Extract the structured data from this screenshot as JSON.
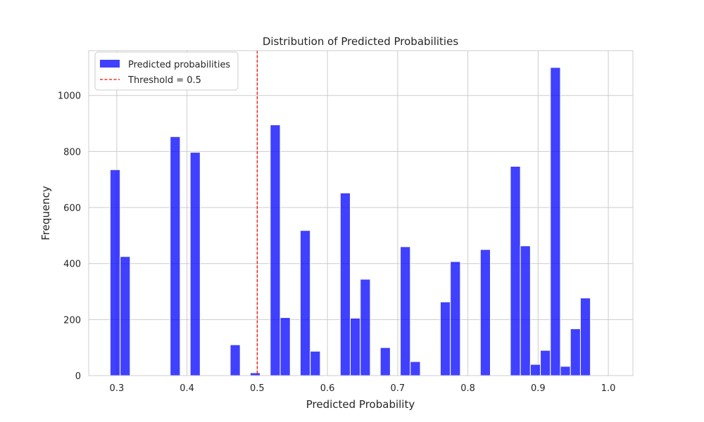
{
  "chart_data": {
    "type": "bar",
    "title": "Distribution of Predicted Probabilities",
    "xlabel": "Predicted Probability",
    "ylabel": "Frequency",
    "xlim": [
      0.26,
      1.035
    ],
    "ylim": [
      0,
      1160
    ],
    "xticks": [
      0.3,
      0.4,
      0.5,
      0.6,
      0.7,
      0.8,
      0.9,
      1.0
    ],
    "xtick_labels": [
      "0.3",
      "0.4",
      "0.5",
      "0.6",
      "0.7",
      "0.8",
      "0.9",
      "1.0"
    ],
    "yticks": [
      0,
      200,
      400,
      600,
      800,
      1000
    ],
    "ytick_labels": [
      "0",
      "200",
      "400",
      "600",
      "800",
      "1000"
    ],
    "grid": true,
    "legend_position": "upper-left",
    "bins": {
      "start": 0.2905,
      "width": 0.01425,
      "values": [
        735,
        425,
        0,
        0,
        0,
        0,
        853,
        0,
        797,
        0,
        0,
        0,
        110,
        0,
        10,
        0,
        895,
        207,
        0,
        518,
        87,
        0,
        0,
        652,
        205,
        344,
        0,
        100,
        0,
        460,
        50,
        0,
        0,
        263,
        407,
        0,
        0,
        450,
        0,
        0,
        747,
        463,
        40,
        90,
        1100,
        33,
        167,
        277
      ]
    },
    "series": [
      {
        "name": "Predicted probabilities",
        "kind": "histogram",
        "color": "#0000ff",
        "opacity": 0.75,
        "edge_color": "#ffffff"
      }
    ],
    "threshold": {
      "label": "Threshold = 0.5",
      "x": 0.5,
      "color": "#ff0000",
      "style": "dashed"
    }
  }
}
